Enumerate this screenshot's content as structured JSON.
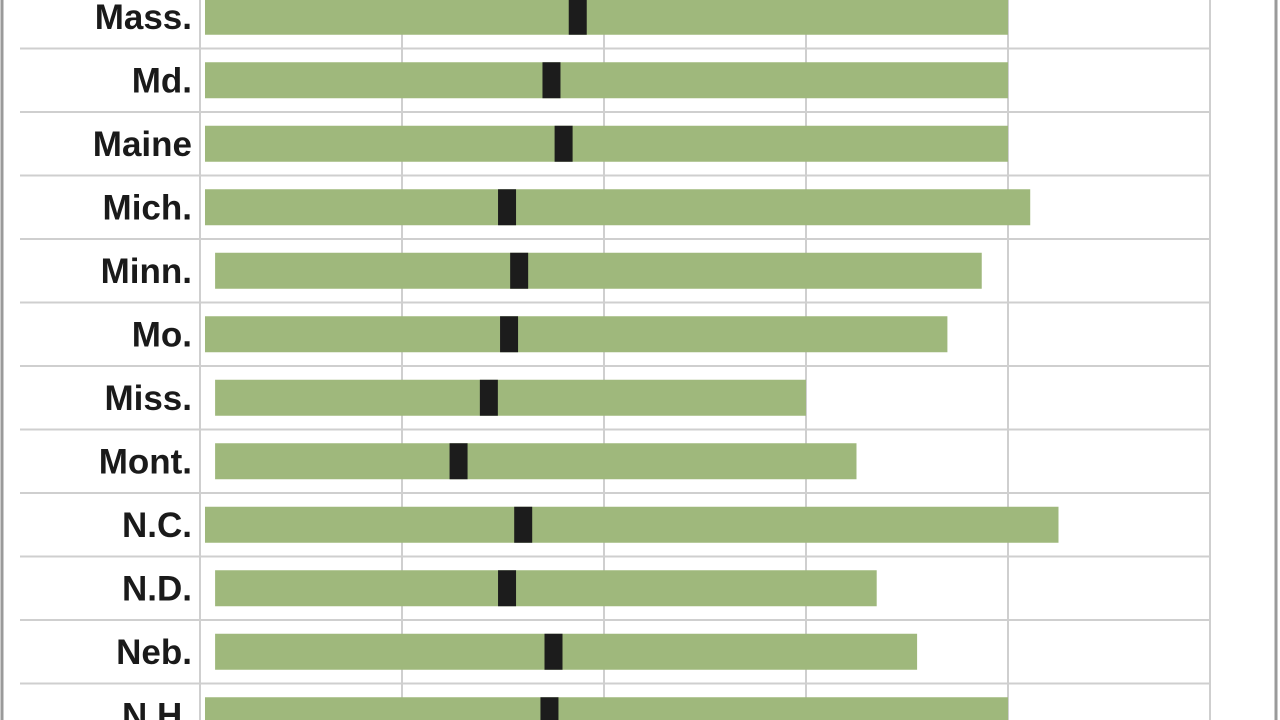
{
  "chart_data": {
    "type": "bar",
    "categories": [
      "Mass.",
      "Md.",
      "Maine",
      "Mich.",
      "Minn.",
      "Mo.",
      "Miss.",
      "Mont.",
      "N.C.",
      "N.D.",
      "Neb.",
      "N.H."
    ],
    "series": [
      {
        "values": [
          [
            0.0,
            4.0
          ],
          [
            0.0,
            4.0
          ],
          [
            0.0,
            4.0
          ],
          [
            0.0,
            4.11
          ],
          [
            0.05,
            3.87
          ],
          [
            0.0,
            3.7
          ],
          [
            0.05,
            3.0
          ],
          [
            0.05,
            3.25
          ],
          [
            0.0,
            4.25
          ],
          [
            0.05,
            3.35
          ],
          [
            0.05,
            3.55
          ],
          [
            0.0,
            4.0
          ]
        ]
      }
    ],
    "markers": [
      1.87,
      1.74,
      1.8,
      1.52,
      1.58,
      1.53,
      1.43,
      1.28,
      1.6,
      1.52,
      1.75,
      1.73
    ],
    "xlim": [
      0,
      5
    ],
    "grid": true,
    "colors": {
      "bar": "#9fb87c",
      "marker": "#1c1c1c",
      "grid": "#cfcfcf",
      "frame": "#9a9a9a",
      "text": "#1a1a1a"
    }
  }
}
